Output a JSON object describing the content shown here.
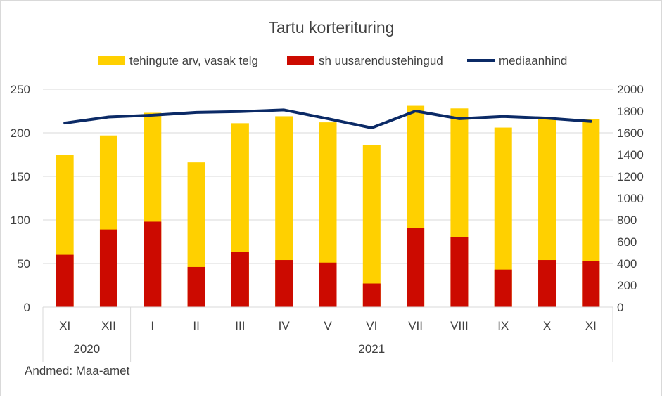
{
  "chart_data": {
    "type": "bar",
    "title": "Tartu korterituring",
    "source": "Andmed: Maa-amet",
    "categories": [
      "XI",
      "XII",
      "I",
      "II",
      "III",
      "IV",
      "V",
      "VI",
      "VII",
      "VIII",
      "IX",
      "X",
      "XI"
    ],
    "year_groups": [
      {
        "label": "2020",
        "span": [
          0,
          1
        ]
      },
      {
        "label": "2021",
        "span": [
          2,
          12
        ]
      }
    ],
    "series": [
      {
        "name": "tehingute arv, vasak telg",
        "kind": "bar",
        "axis": "left",
        "color": "#FFD000",
        "values": [
          175,
          197,
          223,
          166,
          211,
          219,
          212,
          186,
          231,
          228,
          206,
          218,
          216
        ]
      },
      {
        "name": "sh uusarendustehingud",
        "kind": "bar",
        "axis": "left",
        "color": "#CC0A00",
        "values": [
          60,
          89,
          98,
          46,
          63,
          54,
          51,
          27,
          91,
          80,
          43,
          54,
          53
        ]
      },
      {
        "name": "mediaanhind",
        "kind": "line",
        "axis": "right",
        "color": "#0B2A66",
        "values": [
          1690,
          1745,
          1762,
          1788,
          1795,
          1810,
          1730,
          1645,
          1800,
          1730,
          1750,
          1735,
          1705
        ]
      }
    ],
    "y_left": {
      "min": 0,
      "max": 250,
      "ticks": [
        0,
        50,
        100,
        150,
        200,
        250
      ]
    },
    "y_right": {
      "min": 0,
      "max": 2000,
      "ticks": [
        0,
        200,
        400,
        600,
        800,
        1000,
        1200,
        1400,
        1600,
        1800,
        2000
      ]
    },
    "grid": true,
    "legend": "top"
  }
}
